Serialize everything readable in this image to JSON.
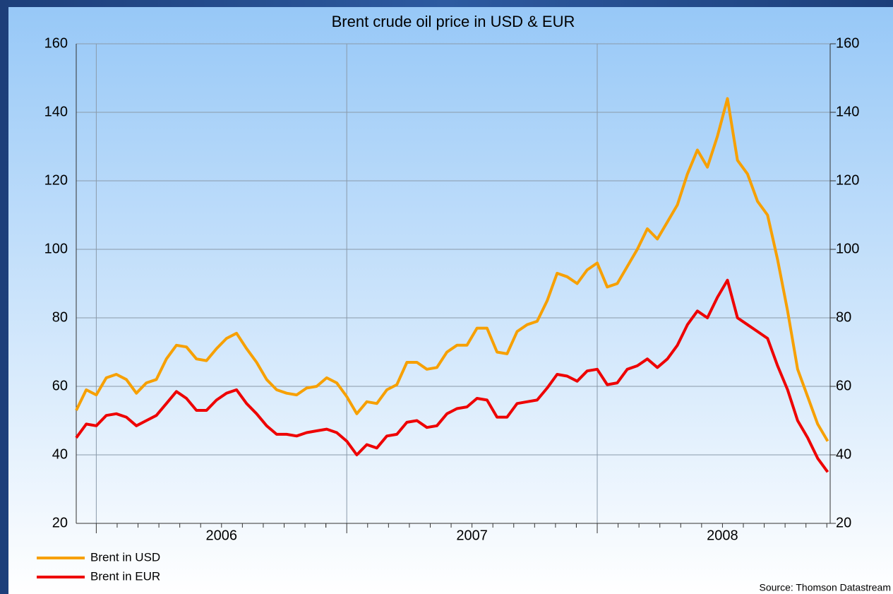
{
  "chart_data": {
    "type": "line",
    "title": "Brent crude oil price in USD & EUR",
    "source": "Source: Thomson Datastream",
    "x": [
      2005.92,
      2005.96,
      2006.0,
      2006.04,
      2006.08,
      2006.12,
      2006.16,
      2006.2,
      2006.24,
      2006.28,
      2006.32,
      2006.36,
      2006.4,
      2006.44,
      2006.48,
      2006.52,
      2006.56,
      2006.6,
      2006.64,
      2006.68,
      2006.72,
      2006.76,
      2006.8,
      2006.84,
      2006.88,
      2006.92,
      2006.96,
      2007.0,
      2007.04,
      2007.08,
      2007.12,
      2007.16,
      2007.2,
      2007.24,
      2007.28,
      2007.32,
      2007.36,
      2007.4,
      2007.44,
      2007.48,
      2007.52,
      2007.56,
      2007.6,
      2007.64,
      2007.68,
      2007.72,
      2007.76,
      2007.8,
      2007.84,
      2007.88,
      2007.92,
      2007.96,
      2008.0,
      2008.04,
      2008.08,
      2008.12,
      2008.16,
      2008.2,
      2008.24,
      2008.28,
      2008.32,
      2008.36,
      2008.4,
      2008.44,
      2008.48,
      2008.52,
      2008.56,
      2008.6,
      2008.64,
      2008.68,
      2008.72,
      2008.76,
      2008.8,
      2008.84,
      2008.88,
      2008.92
    ],
    "series": [
      {
        "name": "Brent in USD",
        "color": "#f7a000",
        "values": [
          53,
          59,
          57.5,
          62.5,
          63.5,
          62,
          58,
          61,
          62,
          68,
          72,
          71.5,
          68,
          67.5,
          71,
          74,
          75.5,
          71,
          67,
          62,
          59,
          58,
          57.5,
          59.5,
          60,
          62.5,
          61,
          57,
          52,
          55.5,
          55,
          59,
          60.5,
          67,
          67,
          65,
          65.5,
          70,
          72,
          72,
          77,
          77,
          70,
          69.5,
          76,
          78,
          79,
          85,
          93,
          92,
          90,
          94,
          96,
          89,
          90,
          95,
          100,
          106,
          103,
          108,
          113,
          122,
          129,
          124,
          133,
          144,
          126,
          122,
          114,
          110,
          97,
          82,
          65,
          57,
          49,
          44
        ]
      },
      {
        "name": "Brent in EUR",
        "color": "#ee0000",
        "values": [
          45,
          49,
          48.5,
          51.5,
          52,
          51,
          48.5,
          50,
          51.5,
          55,
          58.5,
          56.5,
          53,
          53,
          56,
          58,
          59,
          55,
          52,
          48.5,
          46,
          46,
          45.5,
          46.5,
          47,
          47.5,
          46.5,
          44,
          40,
          43,
          42,
          45.5,
          46,
          49.5,
          50,
          48,
          48.5,
          52,
          53.5,
          54,
          56.5,
          56,
          51,
          51,
          55,
          55.5,
          56,
          59.5,
          63.5,
          63,
          61.5,
          64.5,
          65,
          60.5,
          61,
          65,
          66,
          68,
          65.5,
          68,
          72,
          78,
          82,
          80,
          86,
          91,
          80,
          78,
          76,
          74,
          66,
          59,
          50,
          45,
          39,
          35
        ]
      }
    ],
    "xlim": [
      2005.92,
      2008.93
    ],
    "xticks": [
      2006,
      2007,
      2008
    ],
    "xlabels": [
      {
        "value": 2006.5,
        "label": "2006"
      },
      {
        "value": 2007.5,
        "label": "2007"
      },
      {
        "value": 2008.5,
        "label": "2008"
      }
    ],
    "ylim": [
      20,
      160
    ],
    "yticks": [
      20,
      40,
      60,
      80,
      100,
      120,
      140,
      160
    ],
    "y2lim": [
      20,
      160
    ],
    "y2ticks": [
      20,
      40,
      60,
      80,
      100,
      120,
      140,
      160
    ],
    "grid": true,
    "legend": "bottom-left"
  }
}
